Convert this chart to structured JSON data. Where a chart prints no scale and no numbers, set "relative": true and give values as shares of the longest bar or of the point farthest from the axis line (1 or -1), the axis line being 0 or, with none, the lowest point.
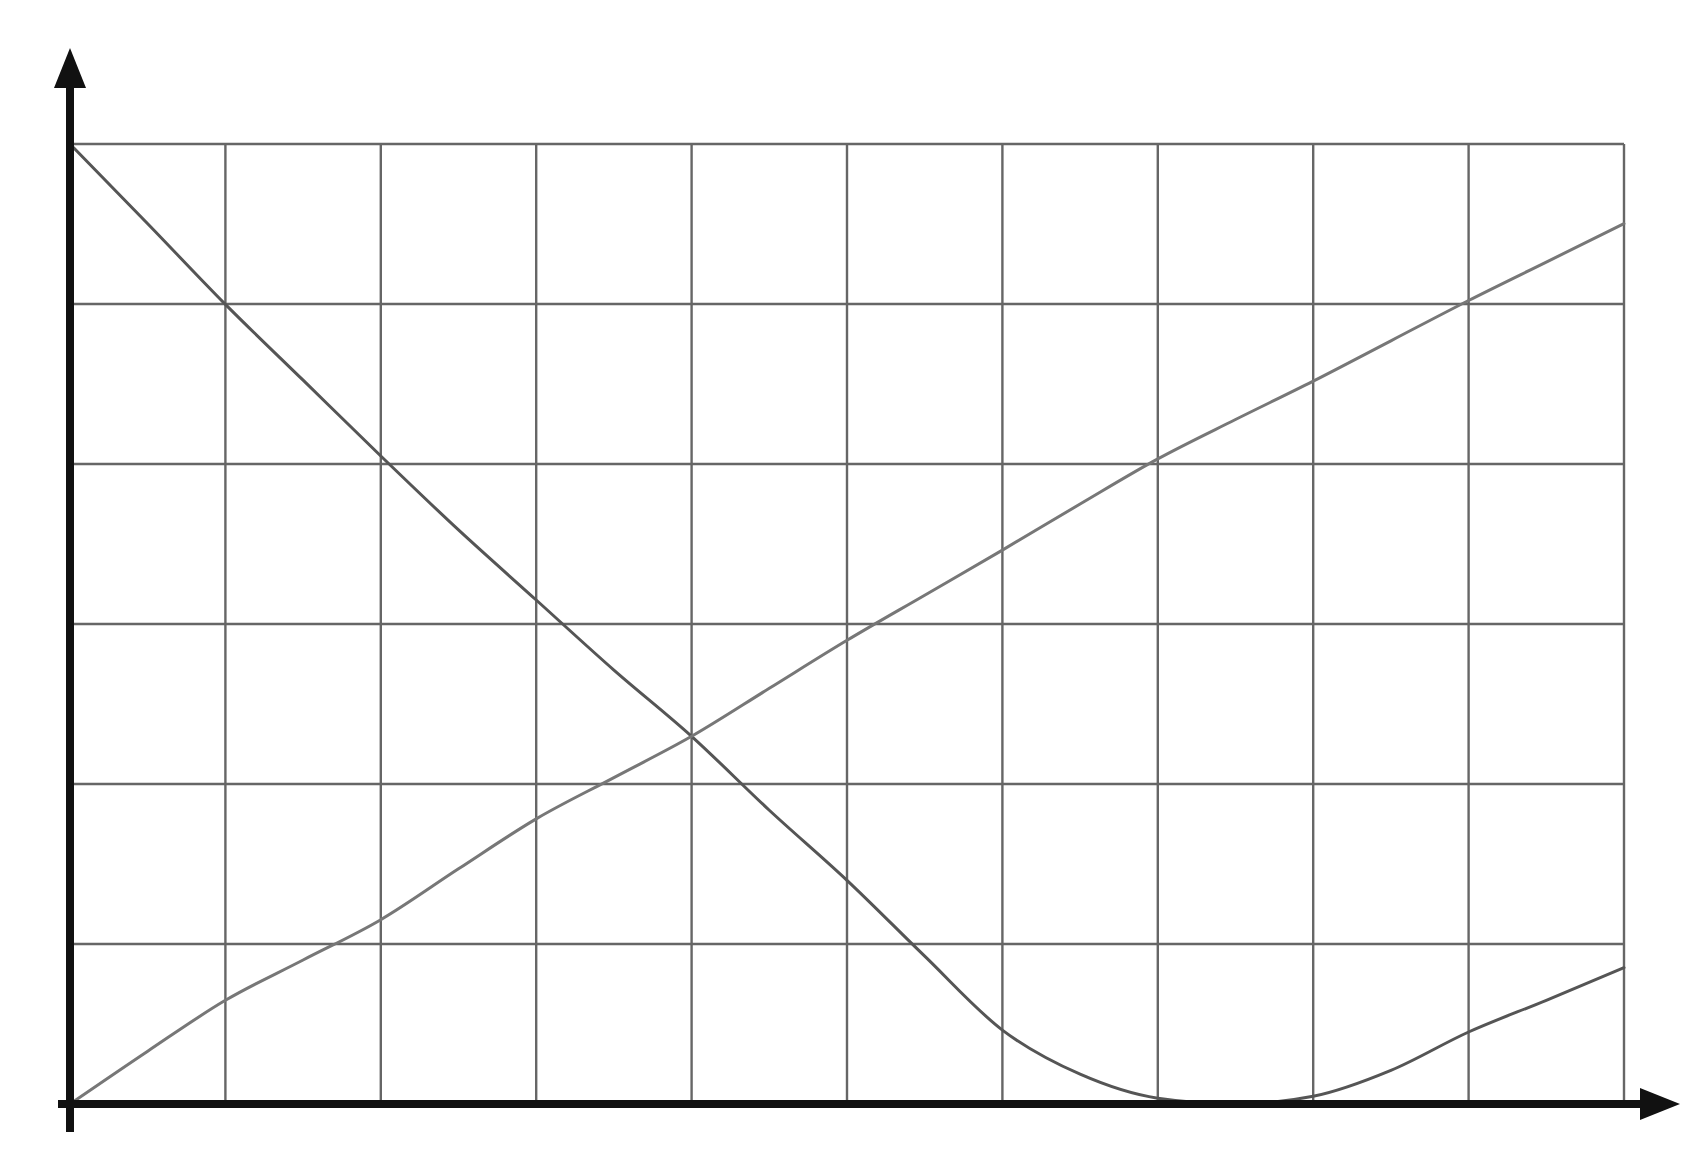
{
  "chart_data": {
    "type": "line",
    "relative": true,
    "grid": true,
    "line_style": "solid",
    "categories": [
      null,
      null,
      null,
      null,
      null,
      null,
      null,
      null,
      null,
      null,
      null,
      null,
      null,
      null,
      null,
      null,
      null,
      null,
      null,
      null,
      null
    ],
    "series": [
      {
        "color": "#555555",
        "values": [
          1.0,
          0.917,
          0.833,
          0.754,
          0.675,
          0.598,
          0.525,
          0.452,
          0.383,
          0.306,
          0.233,
          0.154,
          0.077,
          0.031,
          0.006,
          0,
          0.008,
          0.035,
          0.075,
          0.108,
          0.142
        ]
      },
      {
        "color": "#777777",
        "values": [
          0,
          0.055,
          0.108,
          0.15,
          0.192,
          0.245,
          0.297,
          0.34,
          0.383,
          0.433,
          0.483,
          0.53,
          0.577,
          0.625,
          0.672,
          0.713,
          0.753,
          0.795,
          0.837,
          0.877,
          0.917
        ]
      }
    ]
  }
}
